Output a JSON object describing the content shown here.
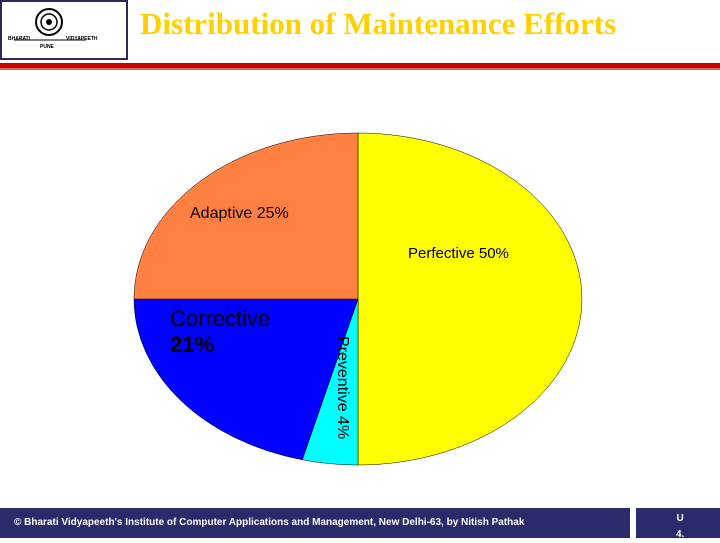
{
  "header": {
    "title": "Distribution of Maintenance Efforts",
    "logo": {
      "left_text": "BHARATI",
      "right_text": "VIDYAPEETH",
      "bottom_text": "PUNE"
    }
  },
  "chart_data": {
    "type": "pie",
    "slices": [
      {
        "label": "Perfective 50%",
        "name": "Perfective",
        "value": 50,
        "color": "#ffff00"
      },
      {
        "label": "Preventive 4%",
        "name": "Preventive",
        "value": 4,
        "color": "#00ffff"
      },
      {
        "label": "Corrective 21%",
        "name": "Corrective",
        "value": 21,
        "color": "#0000ff"
      },
      {
        "label": "Adaptive 25%",
        "name": "Adaptive",
        "value": 25,
        "color": "#ff8040"
      }
    ],
    "title": ""
  },
  "footer": {
    "text": "© Bharati Vidyapeeth's Institute of Computer Applications and Management, New Delhi-63, by Nitish Pathak",
    "page": "U\n4."
  },
  "colors": {
    "title": "#ffd000",
    "rule": "#cc0000",
    "footer_bg": "#2b2b6b"
  }
}
